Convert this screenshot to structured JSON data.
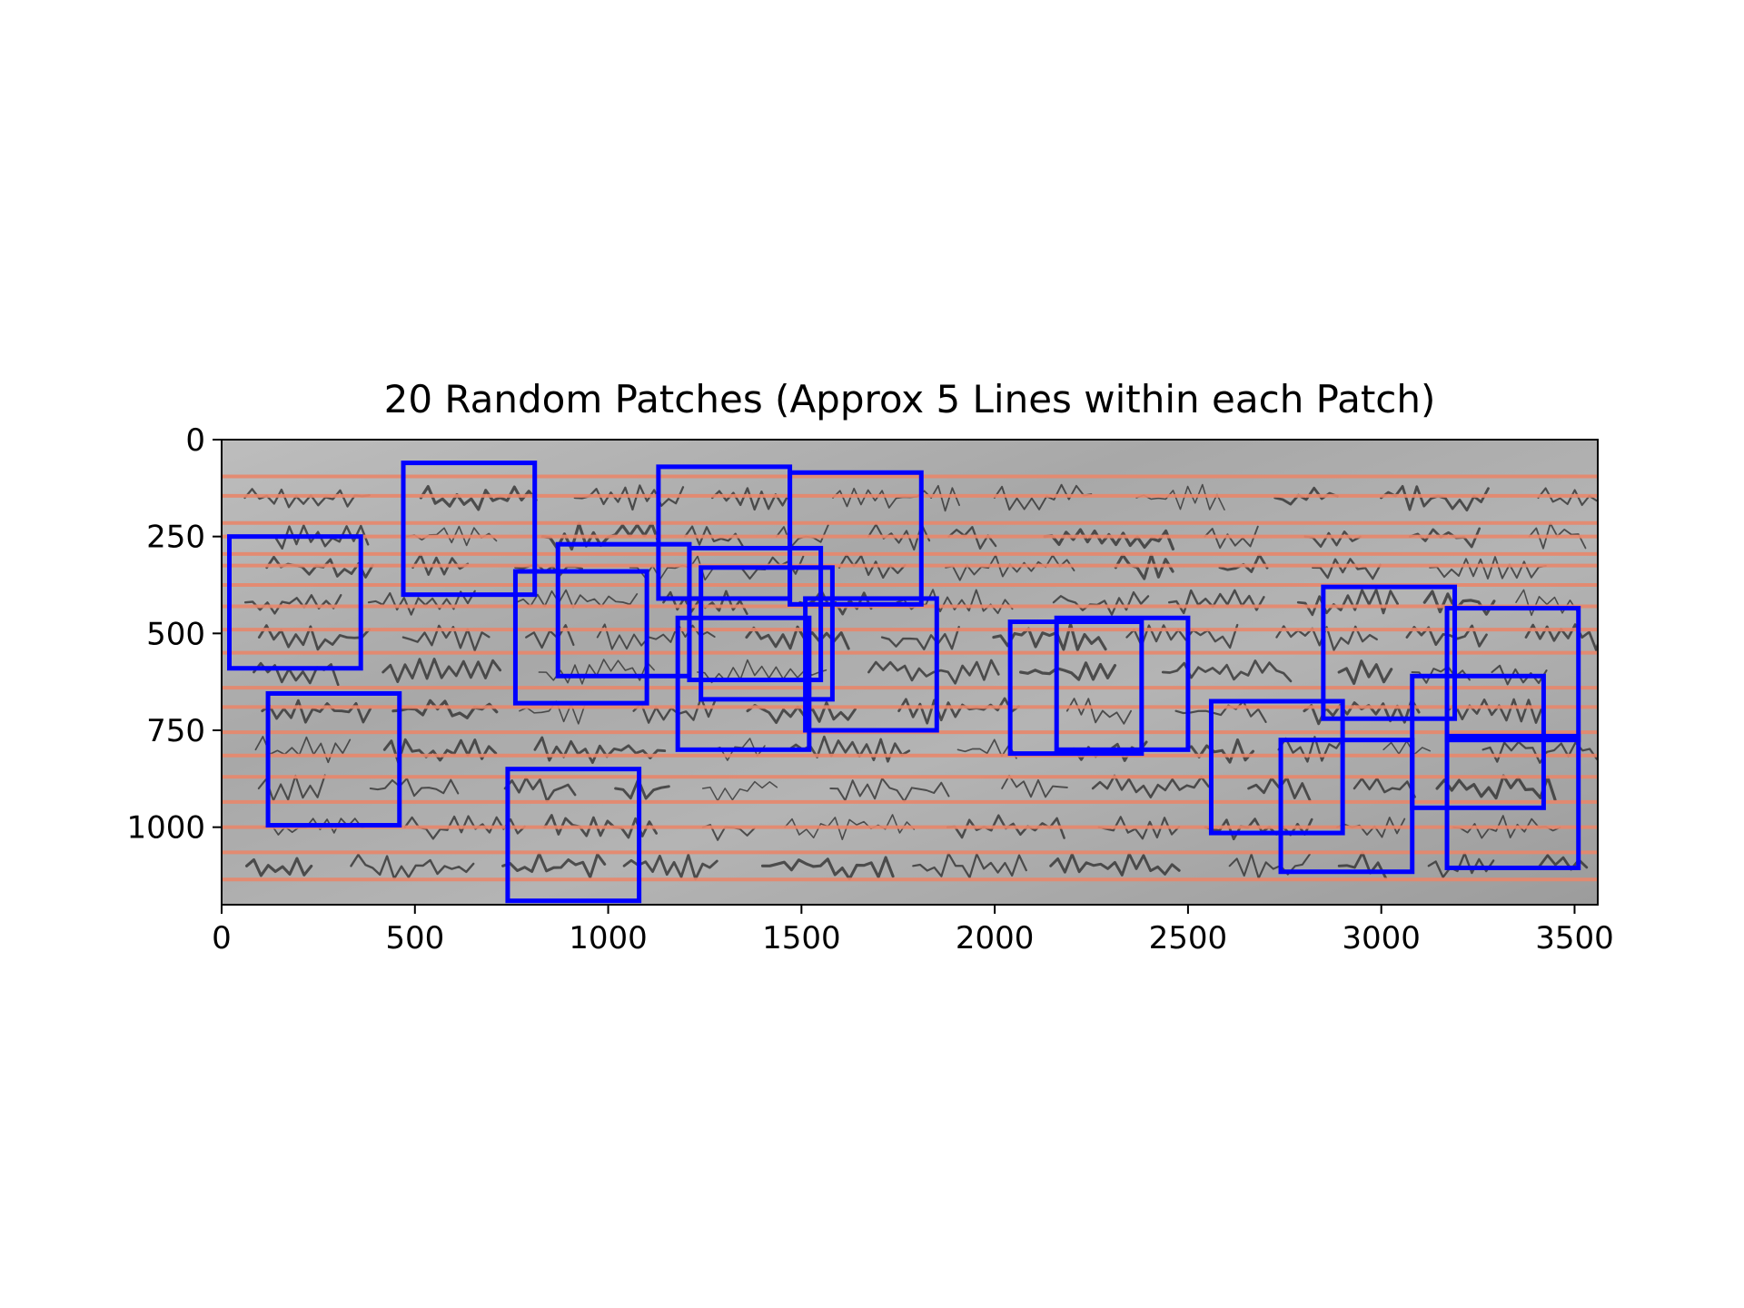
{
  "chart_data": {
    "type": "image-overlay",
    "title": "20 Random Patches (Approx 5 Lines within each Patch)",
    "xlabel": "",
    "ylabel": "",
    "xlim": [
      0,
      3560
    ],
    "ylim": [
      1200,
      0
    ],
    "xticks": [
      0,
      500,
      1000,
      1500,
      2000,
      2500,
      3000,
      3500
    ],
    "yticks": [
      0,
      250,
      500,
      750,
      1000
    ],
    "background": "grayscale handwritten manuscript scan",
    "line_color": "#e8866a",
    "box_color": "#0000ff",
    "text_lines_y": [
      95,
      145,
      215,
      250,
      295,
      325,
      375,
      430,
      490,
      550,
      640,
      690,
      755,
      815,
      870,
      935,
      1000,
      1065,
      1135
    ],
    "patches": [
      {
        "x": 20,
        "y": 250,
        "w": 340,
        "h": 340
      },
      {
        "x": 470,
        "y": 60,
        "w": 340,
        "h": 340
      },
      {
        "x": 1130,
        "y": 70,
        "w": 340,
        "h": 340
      },
      {
        "x": 1470,
        "y": 85,
        "w": 340,
        "h": 340
      },
      {
        "x": 870,
        "y": 270,
        "w": 340,
        "h": 340
      },
      {
        "x": 760,
        "y": 340,
        "w": 340,
        "h": 340
      },
      {
        "x": 1210,
        "y": 280,
        "w": 340,
        "h": 340
      },
      {
        "x": 1240,
        "y": 330,
        "w": 340,
        "h": 340
      },
      {
        "x": 1180,
        "y": 460,
        "w": 340,
        "h": 340
      },
      {
        "x": 1510,
        "y": 410,
        "w": 340,
        "h": 340
      },
      {
        "x": 120,
        "y": 655,
        "w": 340,
        "h": 340
      },
      {
        "x": 740,
        "y": 850,
        "w": 340,
        "h": 340
      },
      {
        "x": 2040,
        "y": 470,
        "w": 340,
        "h": 340
      },
      {
        "x": 2160,
        "y": 460,
        "w": 340,
        "h": 340
      },
      {
        "x": 2850,
        "y": 380,
        "w": 340,
        "h": 340
      },
      {
        "x": 3170,
        "y": 435,
        "w": 340,
        "h": 340
      },
      {
        "x": 3080,
        "y": 610,
        "w": 340,
        "h": 340
      },
      {
        "x": 2560,
        "y": 675,
        "w": 340,
        "h": 340
      },
      {
        "x": 2740,
        "y": 775,
        "w": 340,
        "h": 340
      },
      {
        "x": 3170,
        "y": 765,
        "w": 340,
        "h": 340
      }
    ]
  }
}
